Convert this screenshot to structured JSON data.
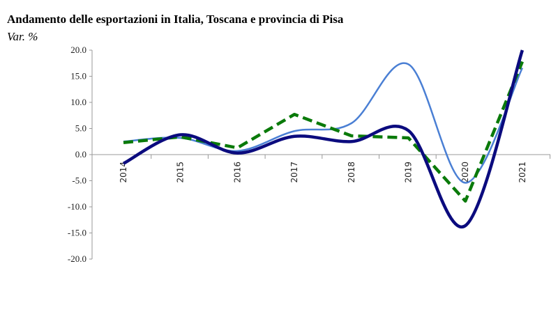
{
  "chart_data": {
    "type": "line",
    "title": "Andamento delle esportazioni in Italia, Toscana e provincia di Pisa",
    "subtitle": "Var. %",
    "xlabel": "",
    "ylabel": "",
    "categories": [
      "2014",
      "2015",
      "2016",
      "2017",
      "2018",
      "2019",
      "2020",
      "2021"
    ],
    "ylim": [
      -20,
      20
    ],
    "yticks": [
      20,
      15,
      10,
      5,
      0,
      -5,
      -10,
      -15,
      -20
    ],
    "ytick_labels": [
      "20.0",
      "15.0",
      "10.0",
      "5.0",
      "0.0",
      "-5.0",
      "-10.0",
      "-15.0",
      "-20.0"
    ],
    "grid": false,
    "legend": "none",
    "series": [
      {
        "color": "#4a7fd4",
        "style": "solid-smooth",
        "values": [
          2.5,
          3.2,
          0.7,
          4.5,
          6.0,
          17.3,
          -5.4,
          16.6
        ]
      },
      {
        "color": "#0a7a0a",
        "style": "dashed",
        "values": [
          2.3,
          3.4,
          1.3,
          7.7,
          3.6,
          3.2,
          -8.9,
          17.8
        ]
      },
      {
        "color": "#0b0b7e",
        "style": "solid-smooth-thick",
        "values": [
          -1.7,
          3.8,
          0.3,
          3.5,
          2.5,
          4.6,
          -13.6,
          20.0
        ]
      }
    ]
  }
}
